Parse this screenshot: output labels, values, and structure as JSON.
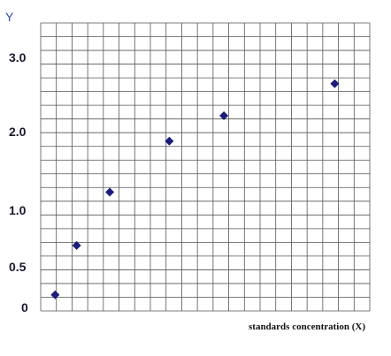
{
  "chart_data": {
    "type": "scatter",
    "ylabel": "Y",
    "xlabel": "standards concentration (X)",
    "yticks": [
      "3.0",
      "2.0",
      "1.0",
      "0.5",
      "0"
    ],
    "ylim": [
      0,
      3.2
    ],
    "xlim": [
      0,
      10
    ],
    "grid": true,
    "marker": "diamond",
    "marker_color": "#1c1c7a",
    "points": [
      {
        "x": 0.25,
        "y": 0.1
      },
      {
        "x": 0.9,
        "y": 0.7
      },
      {
        "x": 1.9,
        "y": 1.35
      },
      {
        "x": 3.7,
        "y": 1.97
      },
      {
        "x": 5.35,
        "y": 2.28
      },
      {
        "x": 8.7,
        "y": 2.67
      }
    ]
  }
}
